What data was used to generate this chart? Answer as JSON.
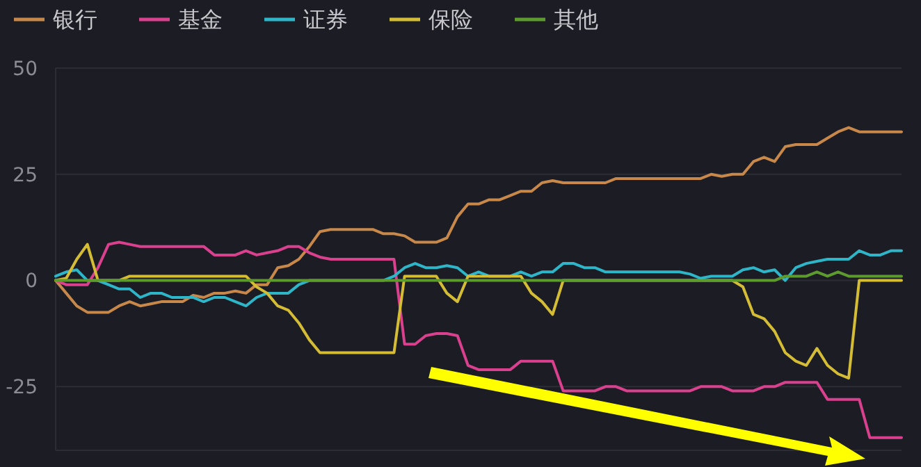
{
  "chart_data": {
    "type": "line",
    "categories": [
      null,
      null,
      null,
      null,
      null,
      null,
      null,
      null,
      null,
      null,
      null,
      null,
      null,
      null,
      null,
      null,
      null,
      null,
      null,
      null,
      null,
      null,
      null,
      null,
      null,
      null,
      null,
      null,
      null,
      null,
      null,
      null,
      null,
      null,
      null,
      null,
      null,
      null,
      null,
      null,
      null,
      null,
      null,
      null,
      null,
      null,
      null,
      null,
      null,
      null,
      null,
      null,
      null,
      null,
      null,
      null,
      null,
      null,
      null,
      null,
      null,
      null,
      null,
      null,
      null,
      null,
      null,
      null,
      null,
      null,
      null,
      null,
      null,
      null,
      null,
      null,
      null,
      null,
      null,
      null,
      null
    ],
    "series": [
      {
        "name": "银行",
        "color": "#c8884a",
        "values": [
          0,
          -3,
          -6,
          -7.5,
          -7.5,
          -7.5,
          -6,
          -5,
          -6,
          -5.5,
          -5,
          -5,
          -5,
          -3.5,
          -4,
          -3,
          -3,
          -2.5,
          -3,
          -1,
          -1,
          3,
          3.5,
          5,
          8,
          11.5,
          12,
          12,
          12,
          12,
          12,
          11,
          11,
          10.5,
          9,
          9,
          9,
          10,
          15,
          18,
          18,
          19,
          19,
          20,
          21,
          21,
          23,
          23.5,
          23,
          23,
          23,
          23,
          23,
          24,
          24,
          24,
          24,
          24,
          24,
          24,
          24,
          24,
          25,
          24.5,
          25,
          25,
          28,
          29,
          28,
          31.5,
          32,
          32,
          32,
          33.5,
          35,
          36,
          35,
          35,
          35,
          35,
          35
        ]
      },
      {
        "name": "基金",
        "color": "#d9418e",
        "values": [
          0,
          -1,
          -1,
          -1,
          3,
          8.5,
          9,
          8.5,
          8,
          8,
          8,
          8,
          8,
          8,
          8,
          6,
          6,
          6,
          7,
          6,
          6.5,
          7,
          8,
          8,
          6.5,
          5.5,
          5,
          5,
          5,
          5,
          5,
          5,
          5,
          -15,
          -15,
          -13,
          -12.5,
          -12.5,
          -13,
          -20,
          -21,
          -21,
          -21,
          -21,
          -19,
          -19,
          -19,
          -19,
          -26,
          -26,
          -26,
          -26,
          -25,
          -25,
          -26,
          -26,
          -26,
          -26,
          -26,
          -26,
          -26,
          -25,
          -25,
          -25,
          -26,
          -26,
          -26,
          -25,
          -25,
          -24,
          -24,
          -24,
          -24,
          -28,
          -28,
          -28,
          -28,
          -37,
          -37,
          -37,
          -37
        ]
      },
      {
        "name": "证券",
        "color": "#2fb5c8",
        "values": [
          1,
          2,
          2.5,
          0,
          0,
          -1,
          -2,
          -2,
          -4,
          -3,
          -3,
          -4,
          -4,
          -4,
          -5,
          -4,
          -4,
          -5,
          -6,
          -4,
          -3,
          -3,
          -3,
          -1,
          0,
          0,
          0,
          0,
          0,
          0,
          0,
          0,
          1,
          3,
          4,
          3,
          3,
          3.5,
          3,
          1,
          2,
          1,
          1,
          1,
          2,
          1,
          2,
          2,
          4,
          4,
          3,
          3,
          2,
          2,
          2,
          2,
          2,
          2,
          2,
          2,
          1.5,
          0.5,
          1,
          1,
          1,
          2.5,
          3,
          2,
          2.5,
          0,
          3,
          4,
          4.5,
          5,
          5,
          5,
          7,
          6,
          6,
          7,
          7
        ]
      },
      {
        "name": "保险",
        "color": "#d4bd35",
        "values": [
          0,
          0.5,
          5,
          8.5,
          0,
          0,
          0,
          1,
          1,
          1,
          1,
          1,
          1,
          1,
          1,
          1,
          1,
          1,
          1,
          -1.5,
          -3,
          -6,
          -7,
          -10,
          -14,
          -17,
          -17,
          -17,
          -17,
          -17,
          -17,
          -17,
          -17,
          1,
          1,
          1,
          1,
          -3,
          -5,
          1,
          1,
          1,
          1,
          1,
          1,
          -3,
          -5,
          -8,
          0,
          0,
          0,
          0,
          0,
          0,
          0,
          0,
          0,
          0,
          0,
          0,
          0,
          0,
          0,
          0,
          0,
          -1.5,
          -8,
          -9,
          -12,
          -17,
          -19,
          -20,
          -16,
          -20,
          -22,
          -23,
          0,
          0,
          0,
          0,
          0
        ]
      },
      {
        "name": "其他",
        "color": "#5d9b2f",
        "values": [
          0,
          0,
          0,
          0,
          0,
          0,
          0,
          0,
          0,
          0,
          0,
          0,
          0,
          0,
          0,
          0,
          0,
          0,
          0,
          0,
          0,
          0,
          0,
          0,
          0,
          0,
          0,
          0,
          0,
          0,
          0,
          0,
          0,
          0,
          0,
          0,
          0,
          0,
          0,
          0,
          0,
          0,
          0,
          0,
          0,
          0,
          0,
          0,
          0,
          0,
          0,
          0,
          0,
          0,
          0,
          0,
          0,
          0,
          0,
          0,
          0,
          0,
          0,
          0,
          0,
          0,
          0,
          0,
          0,
          1,
          1,
          1,
          2,
          1,
          2,
          1,
          1,
          1,
          1,
          1,
          1
        ]
      }
    ],
    "ylim": [
      -40,
      50
    ],
    "yticks": [
      50,
      25,
      0,
      -25
    ],
    "grid": "y",
    "legend": "top left",
    "marker": "none",
    "line_style": "solid",
    "tick_labels": "y"
  }
}
